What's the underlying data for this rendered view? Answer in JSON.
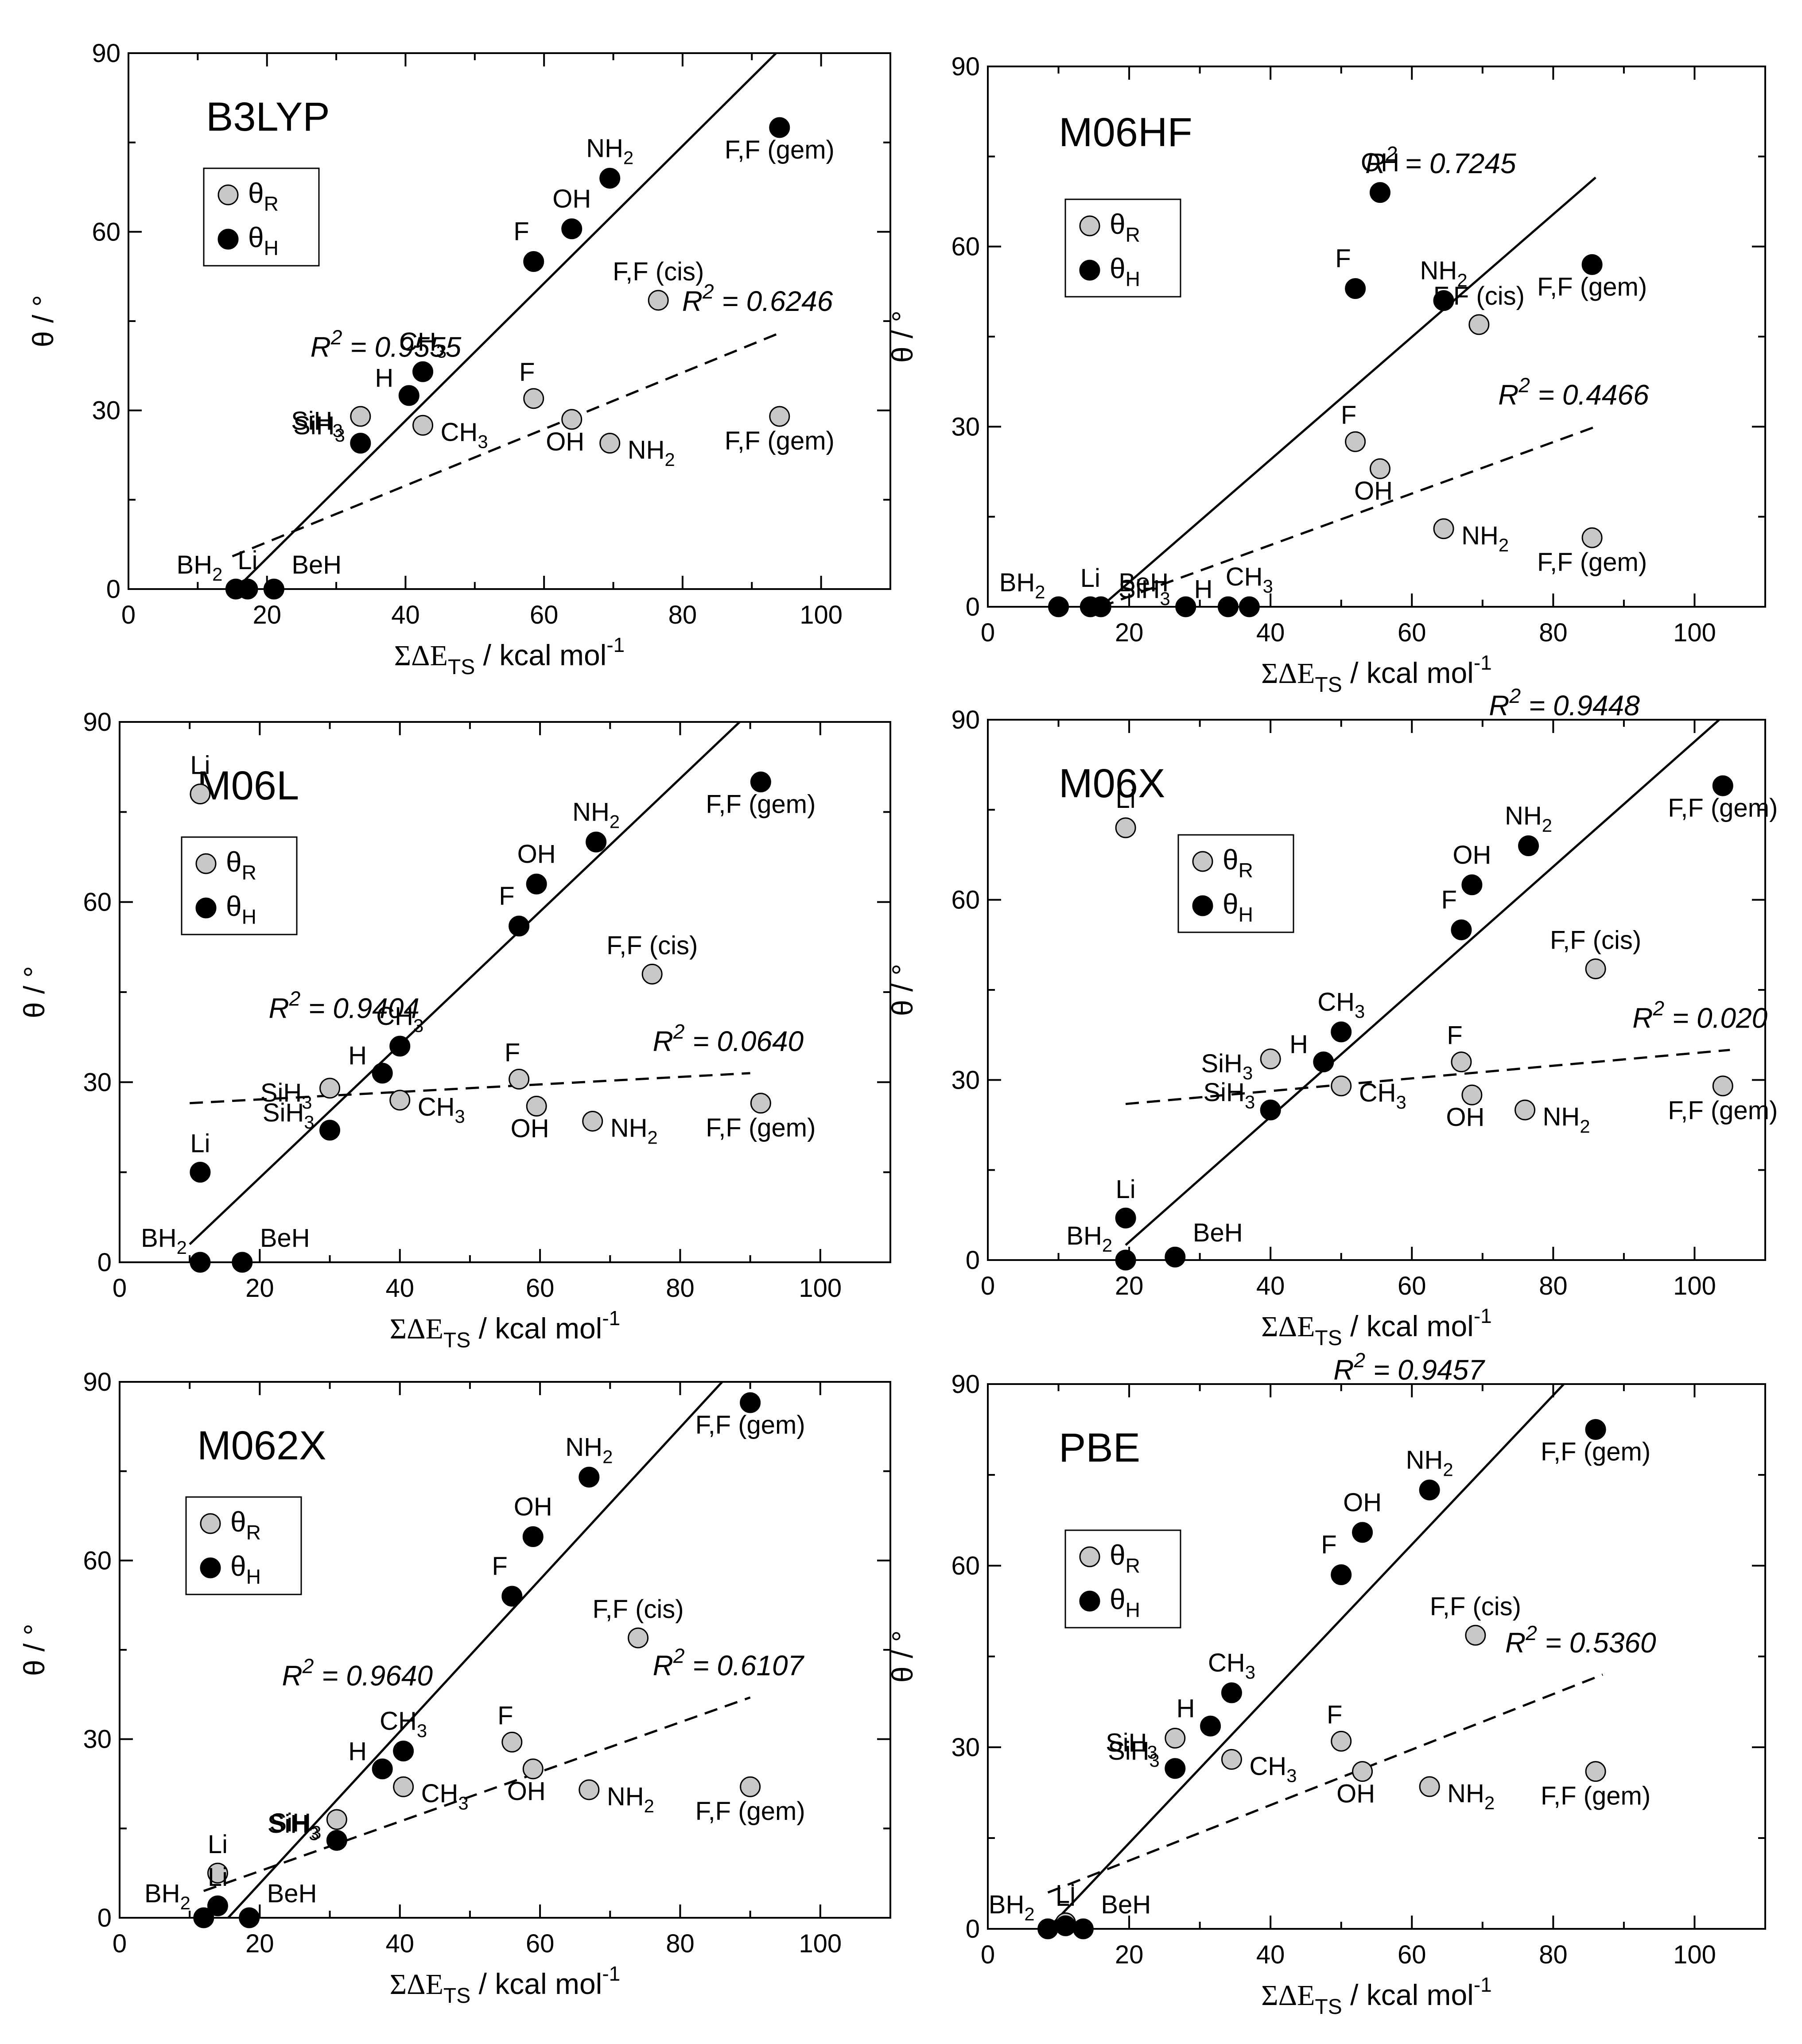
{
  "figure": {
    "x_label_main": "ΣΔE",
    "x_label_sub": "TS",
    "x_label_unit": "/ kcal mol",
    "x_label_exp": "-1",
    "y_label": "θ / °",
    "legend_r_label": "θ",
    "legend_r_sub": "R",
    "legend_h_label": "θ",
    "legend_h_sub": "H",
    "colors": {
      "theta_r": "#c8c8c8",
      "theta_h": "#000000",
      "axis": "#000000",
      "background": "#ffffff"
    }
  },
  "chart_data": [
    {
      "type": "scatter",
      "title": "B3LYP",
      "xlim": [
        0,
        110
      ],
      "ylim": [
        0,
        90
      ],
      "xticks": [
        0,
        20,
        40,
        60,
        80,
        100
      ],
      "yticks": [
        0,
        30,
        60,
        90
      ],
      "series": [
        {
          "name": "θR",
          "points": [
            {
              "x": 33.5,
              "y": 29,
              "label": "SiH3"
            },
            {
              "x": 42.5,
              "y": 27.5,
              "label": "CH3"
            },
            {
              "x": 58.5,
              "y": 32,
              "label": "F"
            },
            {
              "x": 64,
              "y": 28.5,
              "label": "OH"
            },
            {
              "x": 69.5,
              "y": 24.5,
              "label": "NH2"
            },
            {
              "x": 76.5,
              "y": 48.5,
              "label": "F,F (cis)"
            },
            {
              "x": 94,
              "y": 29,
              "label": "F,F (gem)"
            }
          ]
        },
        {
          "name": "θH",
          "points": [
            {
              "x": 15.5,
              "y": 0,
              "label": "BH2"
            },
            {
              "x": 17.2,
              "y": 0,
              "label": "Li"
            },
            {
              "x": 21,
              "y": 0,
              "label": "BeH"
            },
            {
              "x": 33.5,
              "y": 24.5,
              "label": "SiH3"
            },
            {
              "x": 40.5,
              "y": 32.5,
              "label": "H"
            },
            {
              "x": 42.5,
              "y": 36.5,
              "label": "CH3"
            },
            {
              "x": 58.5,
              "y": 55,
              "label": "F"
            },
            {
              "x": 64,
              "y": 60.5,
              "label": "OH"
            },
            {
              "x": 69.5,
              "y": 69,
              "label": "NH2"
            },
            {
              "x": 94,
              "y": 77.5,
              "label": "F,F (gem)"
            }
          ]
        }
      ],
      "fits": [
        {
          "series": "θH",
          "style": "solid",
          "x": [
            15.5,
            93.5
          ],
          "y": [
            0,
            90
          ],
          "r2": "R² = 0.9555"
        },
        {
          "series": "θR",
          "style": "dashed",
          "x": [
            15,
            94
          ],
          "y": [
            5.5,
            43
          ],
          "r2": "R² = 0.6246"
        }
      ]
    },
    {
      "type": "scatter",
      "title": "M06HF",
      "xlim": [
        0,
        110
      ],
      "ylim": [
        0,
        90
      ],
      "xticks": [
        0,
        20,
        40,
        60,
        80,
        100
      ],
      "yticks": [
        0,
        30,
        60,
        90
      ],
      "series": [
        {
          "name": "θR",
          "points": [
            {
              "x": 52,
              "y": 27.5,
              "label": "F"
            },
            {
              "x": 55.5,
              "y": 23,
              "label": "OH"
            },
            {
              "x": 64.5,
              "y": 13,
              "label": "NH2"
            },
            {
              "x": 69.5,
              "y": 47,
              "label": "F,F (cis)"
            },
            {
              "x": 85.5,
              "y": 11.5,
              "label": "F,F (gem)"
            }
          ]
        },
        {
          "name": "θH",
          "points": [
            {
              "x": 10,
              "y": 0,
              "label": "BH2"
            },
            {
              "x": 14.5,
              "y": 0,
              "label": "Li"
            },
            {
              "x": 16,
              "y": 0,
              "label": "BeH"
            },
            {
              "x": 28,
              "y": 0,
              "label": "SiH3"
            },
            {
              "x": 34,
              "y": 0,
              "label": "H"
            },
            {
              "x": 37,
              "y": 0,
              "label": "CH3"
            },
            {
              "x": 52,
              "y": 53,
              "label": "F"
            },
            {
              "x": 55.5,
              "y": 69,
              "label": "OH"
            },
            {
              "x": 64.5,
              "y": 51,
              "label": "NH2"
            },
            {
              "x": 85.5,
              "y": 57,
              "label": "F,F (gem)"
            }
          ]
        }
      ],
      "fits": [
        {
          "series": "θH",
          "style": "solid",
          "x": [
            16,
            86
          ],
          "y": [
            0,
            71.5
          ],
          "r2": "R² = 0.7245"
        },
        {
          "series": "θR",
          "style": "dashed",
          "x": [
            16,
            86
          ],
          "y": [
            0,
            30
          ],
          "r2": "R² = 0.4466"
        }
      ]
    },
    {
      "type": "scatter",
      "title": "M06L",
      "xlim": [
        0,
        110
      ],
      "ylim": [
        0,
        90
      ],
      "xticks": [
        0,
        20,
        40,
        60,
        80,
        100
      ],
      "yticks": [
        0,
        30,
        60,
        90
      ],
      "series": [
        {
          "name": "θR",
          "points": [
            {
              "x": 11.5,
              "y": 78,
              "label": "Li"
            },
            {
              "x": 30,
              "y": 29,
              "label": "SiH3"
            },
            {
              "x": 40,
              "y": 27,
              "label": "CH3"
            },
            {
              "x": 57,
              "y": 30.5,
              "label": "F"
            },
            {
              "x": 59.5,
              "y": 26,
              "label": "OH"
            },
            {
              "x": 67.5,
              "y": 23.5,
              "label": "NH2"
            },
            {
              "x": 76,
              "y": 48,
              "label": "F,F (cis)"
            },
            {
              "x": 91.5,
              "y": 26.5,
              "label": "F,F (gem)"
            }
          ]
        },
        {
          "name": "θH",
          "points": [
            {
              "x": 11.5,
              "y": 0,
              "label": "BH2"
            },
            {
              "x": 11.5,
              "y": 15,
              "label": "Li"
            },
            {
              "x": 17.5,
              "y": 0,
              "label": "BeH"
            },
            {
              "x": 30,
              "y": 22,
              "label": "SiH3"
            },
            {
              "x": 37.5,
              "y": 31.5,
              "label": "H"
            },
            {
              "x": 40,
              "y": 36,
              "label": "CH3"
            },
            {
              "x": 57,
              "y": 56,
              "label": "F"
            },
            {
              "x": 59.5,
              "y": 63,
              "label": "OH"
            },
            {
              "x": 68,
              "y": 70,
              "label": "NH2"
            },
            {
              "x": 91.5,
              "y": 80,
              "label": "F,F (gem)"
            }
          ]
        }
      ],
      "fits": [
        {
          "series": "θH",
          "style": "solid",
          "x": [
            10,
            88.5
          ],
          "y": [
            3,
            90
          ],
          "r2": "R² = 0.9404"
        },
        {
          "series": "θR",
          "style": "dashed",
          "x": [
            10,
            90
          ],
          "y": [
            26.5,
            31.5
          ],
          "r2": "R² = 0.0640"
        }
      ]
    },
    {
      "type": "scatter",
      "title": "M06X",
      "xlim": [
        0,
        110
      ],
      "ylim": [
        0,
        90
      ],
      "xticks": [
        0,
        20,
        40,
        60,
        80,
        100
      ],
      "yticks": [
        0,
        30,
        60,
        90
      ],
      "series": [
        {
          "name": "θR",
          "points": [
            {
              "x": 19.5,
              "y": 72,
              "label": "Li"
            },
            {
              "x": 40,
              "y": 33.5,
              "label": "SiH3"
            },
            {
              "x": 50,
              "y": 29,
              "label": "CH3"
            },
            {
              "x": 67,
              "y": 33,
              "label": "F"
            },
            {
              "x": 68.5,
              "y": 27.5,
              "label": "OH"
            },
            {
              "x": 76,
              "y": 25,
              "label": "NH2"
            },
            {
              "x": 86,
              "y": 48.5,
              "label": "F,F (cis)"
            },
            {
              "x": 104,
              "y": 29,
              "label": "F,F (gem)"
            }
          ]
        },
        {
          "name": "θH",
          "points": [
            {
              "x": 19.5,
              "y": 0,
              "label": "BH2"
            },
            {
              "x": 19.5,
              "y": 7,
              "label": "Li"
            },
            {
              "x": 26.5,
              "y": 0.5,
              "label": "BeH"
            },
            {
              "x": 40,
              "y": 25,
              "label": "SiH3"
            },
            {
              "x": 47.5,
              "y": 33,
              "label": "H"
            },
            {
              "x": 50,
              "y": 38,
              "label": "CH3"
            },
            {
              "x": 67,
              "y": 55,
              "label": "F"
            },
            {
              "x": 68.5,
              "y": 62.5,
              "label": "OH"
            },
            {
              "x": 76.5,
              "y": 69,
              "label": "NH2"
            },
            {
              "x": 104,
              "y": 79,
              "label": "F,F (gem)"
            }
          ]
        }
      ],
      "fits": [
        {
          "series": "θH",
          "style": "solid",
          "x": [
            19.5,
            103.5
          ],
          "y": [
            2.5,
            90
          ],
          "r2": "R² = 0.9448"
        },
        {
          "series": "θR",
          "style": "dashed",
          "x": [
            19.5,
            105
          ],
          "y": [
            26,
            35
          ],
          "r2": "R² = 0.020"
        }
      ]
    },
    {
      "type": "scatter",
      "title": "M062X",
      "xlim": [
        0,
        110
      ],
      "ylim": [
        0,
        90
      ],
      "xticks": [
        0,
        20,
        40,
        60,
        80,
        100
      ],
      "yticks": [
        0,
        30,
        60,
        90
      ],
      "series": [
        {
          "name": "θR",
          "points": [
            {
              "x": 14,
              "y": 7.5,
              "label": "Li"
            },
            {
              "x": 31,
              "y": 16.5,
              "label": "SiH3"
            },
            {
              "x": 40.5,
              "y": 22,
              "label": "CH3"
            },
            {
              "x": 56,
              "y": 29.5,
              "label": "F"
            },
            {
              "x": 59,
              "y": 25,
              "label": "OH"
            },
            {
              "x": 67,
              "y": 21.5,
              "label": "NH2"
            },
            {
              "x": 74,
              "y": 47,
              "label": "F,F (cis)"
            },
            {
              "x": 90,
              "y": 22,
              "label": "F,F (gem)"
            }
          ]
        },
        {
          "name": "θH",
          "points": [
            {
              "x": 12,
              "y": 0,
              "label": "BH2"
            },
            {
              "x": 14,
              "y": 2,
              "label": "Li"
            },
            {
              "x": 18.5,
              "y": 0,
              "label": "BeH"
            },
            {
              "x": 31,
              "y": 13,
              "label": "SiH3"
            },
            {
              "x": 37.5,
              "y": 25,
              "label": "H"
            },
            {
              "x": 40.5,
              "y": 28,
              "label": "CH3"
            },
            {
              "x": 56,
              "y": 54,
              "label": "F"
            },
            {
              "x": 59,
              "y": 64,
              "label": "OH"
            },
            {
              "x": 67,
              "y": 74,
              "label": "NH2"
            },
            {
              "x": 90,
              "y": 86.5,
              "label": "F,F (gem)"
            }
          ]
        }
      ],
      "fits": [
        {
          "series": "θH",
          "style": "solid",
          "x": [
            15.5,
            86
          ],
          "y": [
            0,
            90
          ],
          "r2": "R² = 0.9640"
        },
        {
          "series": "θR",
          "style": "dashed",
          "x": [
            12,
            90
          ],
          "y": [
            4.5,
            37
          ],
          "r2": "R² = 0.6107"
        }
      ]
    },
    {
      "type": "scatter",
      "title": "PBE",
      "xlim": [
        0,
        110
      ],
      "ylim": [
        0,
        90
      ],
      "xticks": [
        0,
        20,
        40,
        60,
        80,
        100
      ],
      "yticks": [
        0,
        30,
        60,
        90
      ],
      "series": [
        {
          "name": "θR",
          "points": [
            {
              "x": 11,
              "y": 1,
              "label": "Li"
            },
            {
              "x": 26.5,
              "y": 31.5,
              "label": "SiH3"
            },
            {
              "x": 34.5,
              "y": 28,
              "label": "CH3"
            },
            {
              "x": 50,
              "y": 31,
              "label": "F"
            },
            {
              "x": 53,
              "y": 26,
              "label": "OH"
            },
            {
              "x": 62.5,
              "y": 23.5,
              "label": "NH2"
            },
            {
              "x": 69,
              "y": 48.5,
              "label": "F,F (cis)"
            },
            {
              "x": 86,
              "y": 26,
              "label": "F,F (gem)"
            }
          ]
        },
        {
          "name": "θH",
          "points": [
            {
              "x": 8.5,
              "y": 0,
              "label": "BH2"
            },
            {
              "x": 11,
              "y": 0.5,
              "label": "Li"
            },
            {
              "x": 13.5,
              "y": 0,
              "label": "BeH"
            },
            {
              "x": 26.5,
              "y": 26.5,
              "label": "SiH3"
            },
            {
              "x": 31.5,
              "y": 33.5,
              "label": "H"
            },
            {
              "x": 34.5,
              "y": 39,
              "label": "CH3"
            },
            {
              "x": 50,
              "y": 58.5,
              "label": "F"
            },
            {
              "x": 53,
              "y": 65.5,
              "label": "OH"
            },
            {
              "x": 62.5,
              "y": 72.5,
              "label": "NH2"
            },
            {
              "x": 86,
              "y": 82.5,
              "label": "F,F (gem)"
            }
          ]
        }
      ],
      "fits": [
        {
          "series": "θH",
          "style": "solid",
          "x": [
            8.5,
            81.5
          ],
          "y": [
            0,
            90
          ],
          "r2": "R² = 0.9457"
        },
        {
          "series": "θR",
          "style": "dashed",
          "x": [
            8.5,
            87
          ],
          "y": [
            6,
            42
          ],
          "r2": "R² = 0.5360"
        }
      ]
    }
  ]
}
